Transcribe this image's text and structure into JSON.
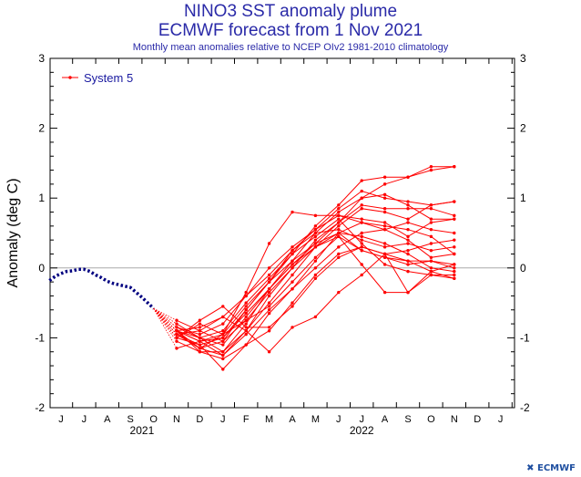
{
  "titles": {
    "line1": "NINO3 SST anomaly plume",
    "line2": "ECMWF forecast from 1 Nov 2021",
    "line3": "Monthly mean anomalies relative to NCEP OIv2 1981-2010 climatology"
  },
  "logo": {
    "glyph": "✖",
    "text": "ECMWF"
  },
  "colors": {
    "forecast": "#ff0000",
    "observed": "#000080",
    "axis": "#000000",
    "title": "#2a2aa8"
  },
  "chart_data": {
    "type": "line",
    "ylabel": "Anomaly (deg C)",
    "ylim": [
      -2,
      3
    ],
    "yticks": [
      -2,
      -1,
      0,
      1,
      2,
      3
    ],
    "months": [
      "J",
      "J",
      "A",
      "S",
      "O",
      "N",
      "D",
      "J",
      "F",
      "M",
      "A",
      "M",
      "J",
      "J",
      "A",
      "S",
      "O",
      "N",
      "D",
      "J"
    ],
    "years": [
      {
        "label": "2021",
        "month_index": 3.5
      },
      {
        "label": "2022",
        "month_index": 13
      }
    ],
    "grid": false,
    "zero_line": true,
    "legend": {
      "position": "top-left",
      "label": "System 5"
    },
    "observed": {
      "x_index": [
        -0.5,
        -0.25,
        0,
        0.25,
        0.5,
        0.75,
        1,
        1.25,
        1.5,
        1.75,
        2,
        2.25,
        2.5,
        2.75,
        3,
        3.25,
        3.5,
        3.75,
        4
      ],
      "values": [
        -0.18,
        -0.12,
        -0.08,
        -0.05,
        -0.04,
        -0.02,
        -0.02,
        -0.05,
        -0.1,
        -0.14,
        -0.19,
        -0.22,
        -0.24,
        -0.26,
        -0.28,
        -0.35,
        -0.42,
        -0.5,
        -0.58
      ]
    },
    "forecast_start": {
      "x_index": 4,
      "value": -0.58
    },
    "forecast_x_index": [
      5,
      6,
      7,
      8,
      9,
      10,
      11,
      12,
      13,
      14,
      15,
      16,
      17
    ],
    "members": [
      [
        -0.9,
        -1.0,
        -1.2,
        -0.8,
        -0.3,
        0.1,
        0.5,
        0.8,
        1.0,
        1.2,
        1.3,
        1.4,
        1.45
      ],
      [
        -1.0,
        -1.1,
        -1.0,
        -0.6,
        -0.2,
        0.2,
        0.6,
        0.9,
        1.25,
        1.3,
        1.3,
        1.45,
        1.45
      ],
      [
        -0.85,
        -0.95,
        -0.8,
        -0.4,
        0.0,
        0.3,
        0.55,
        0.85,
        1.1,
        1.0,
        0.95,
        0.9,
        0.95
      ],
      [
        -0.95,
        -1.15,
        -1.25,
        -0.9,
        -0.5,
        -0.1,
        0.3,
        0.6,
        0.85,
        0.8,
        0.7,
        0.9,
        0.95
      ],
      [
        -0.8,
        -1.0,
        -1.1,
        -0.7,
        -0.3,
        0.05,
        0.35,
        0.65,
        0.9,
        0.85,
        0.85,
        0.85,
        0.75
      ],
      [
        -1.15,
        -1.05,
        -0.95,
        -0.35,
        0.35,
        0.8,
        0.75,
        0.75,
        0.7,
        0.65,
        0.45,
        0.65,
        0.7
      ],
      [
        -0.9,
        -1.2,
        -1.3,
        -1.1,
        -0.65,
        -0.3,
        0.1,
        0.5,
        0.65,
        0.55,
        0.65,
        0.55,
        0.5
      ],
      [
        -1.0,
        -0.8,
        -0.95,
        -0.55,
        -0.2,
        0.25,
        0.5,
        0.55,
        0.4,
        0.3,
        0.35,
        0.25,
        0.3
      ],
      [
        -0.9,
        -1.05,
        -1.25,
        -0.95,
        -0.6,
        -0.3,
        0.0,
        0.3,
        0.5,
        0.55,
        0.4,
        0.15,
        0.2
      ],
      [
        -0.95,
        -1.1,
        -1.45,
        -1.1,
        -0.9,
        -0.5,
        -0.1,
        0.2,
        0.3,
        0.2,
        0.25,
        0.35,
        0.4
      ],
      [
        -0.75,
        -0.9,
        -1.05,
        -0.75,
        -0.35,
        0.0,
        0.3,
        0.5,
        0.25,
        0.15,
        0.05,
        0.1,
        0.05
      ],
      [
        -0.95,
        -1.15,
        -1.05,
        -0.6,
        -0.2,
        0.1,
        0.35,
        0.5,
        0.45,
        0.35,
        0.2,
        0.0,
        -0.05
      ],
      [
        -0.85,
        -1.0,
        -0.9,
        -0.5,
        -0.15,
        0.2,
        0.45,
        0.7,
        0.35,
        0.05,
        -0.05,
        -0.1,
        -0.1
      ],
      [
        -0.9,
        -1.05,
        -1.0,
        -0.65,
        -0.3,
        0.05,
        0.3,
        0.45,
        0.25,
        0.15,
        0.1,
        -0.05,
        -0.15
      ],
      [
        -1.0,
        -0.75,
        -0.55,
        -0.85,
        -0.85,
        -0.55,
        -0.15,
        0.15,
        0.3,
        0.2,
        0.1,
        0.1,
        0.0
      ],
      [
        -0.9,
        -0.85,
        -0.7,
        -0.9,
        -1.2,
        -0.85,
        -0.7,
        -0.35,
        -0.1,
        0.2,
        -0.35,
        -0.1,
        -0.15
      ],
      [
        -0.9,
        -1.15,
        -0.95,
        -0.75,
        -0.55,
        -0.2,
        0.15,
        0.45,
        0.05,
        -0.35,
        -0.35,
        -0.05,
        0.05
      ],
      [
        -0.95,
        -0.9,
        -0.7,
        -0.4,
        -0.1,
        0.25,
        0.55,
        0.75,
        0.65,
        0.6,
        0.55,
        0.45,
        0.2
      ],
      [
        -1.05,
        -1.2,
        -1.2,
        -0.9,
        -0.4,
        0.0,
        0.4,
        0.65,
        1.0,
        1.05,
        0.9,
        0.7,
        0.7
      ]
    ]
  }
}
